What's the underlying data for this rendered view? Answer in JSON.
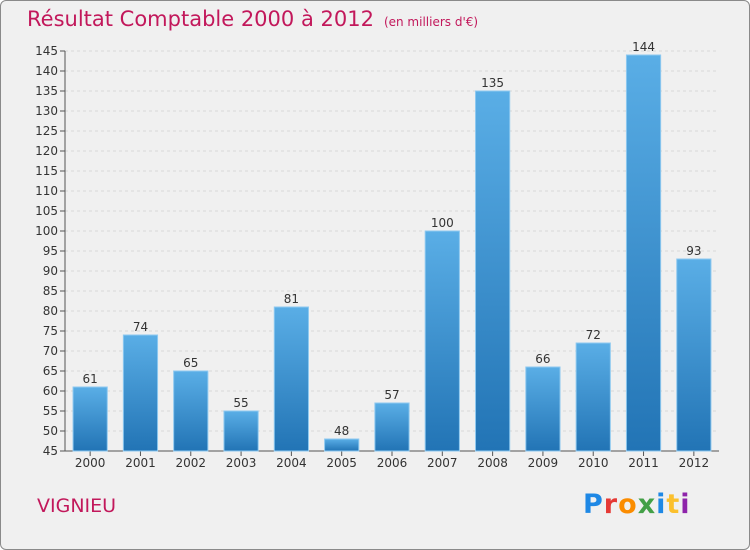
{
  "header": {
    "title": "Résultat Comptable 2000 à 2012",
    "subtitle": "(en milliers d'€)"
  },
  "commune": "VIGNIEU",
  "logo": {
    "letters": [
      {
        "ch": "P",
        "color": "#1e88e5"
      },
      {
        "ch": "r",
        "color": "#e53935"
      },
      {
        "ch": "o",
        "color": "#fb8c00"
      },
      {
        "ch": "x",
        "color": "#43a047"
      },
      {
        "ch": "i",
        "color": "#1e88e5"
      },
      {
        "ch": "t",
        "color": "#fbc02d"
      },
      {
        "ch": "i",
        "color": "#8e24aa"
      }
    ]
  },
  "colors": {
    "bar_top": "#5aaee6",
    "bar_bottom": "#2274b5",
    "title": "#c2185b",
    "axis_text": "#333333",
    "grid": "#d7d7d7"
  },
  "chart_data": {
    "type": "bar",
    "title": "Résultat Comptable 2000 à 2012",
    "subtitle": "(en milliers d'€)",
    "categories": [
      "2000",
      "2001",
      "2002",
      "2003",
      "2004",
      "2005",
      "2006",
      "2007",
      "2008",
      "2009",
      "2010",
      "2011",
      "2012"
    ],
    "values": [
      61,
      74,
      65,
      55,
      81,
      48,
      57,
      100,
      135,
      66,
      72,
      144,
      93
    ],
    "ylim": [
      45,
      145
    ],
    "yticks": [
      45,
      50,
      55,
      60,
      65,
      70,
      75,
      80,
      85,
      90,
      95,
      100,
      105,
      110,
      115,
      120,
      125,
      130,
      135,
      140,
      145
    ],
    "xlabel": "",
    "ylabel": "",
    "grid": true,
    "data_labels": true
  }
}
